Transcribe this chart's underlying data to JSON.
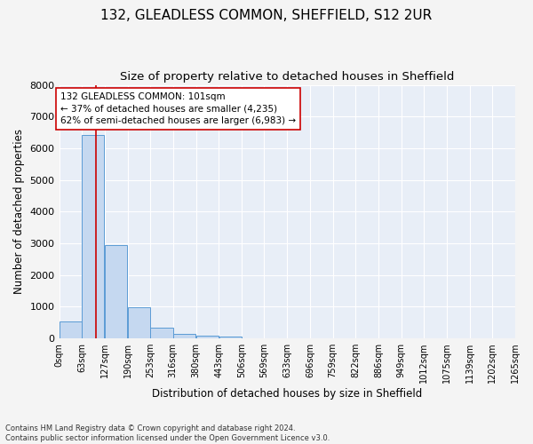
{
  "title_line1": "132, GLEADLESS COMMON, SHEFFIELD, S12 2UR",
  "title_line2": "Size of property relative to detached houses in Sheffield",
  "xlabel": "Distribution of detached houses by size in Sheffield",
  "ylabel": "Number of detached properties",
  "footnote1": "Contains HM Land Registry data © Crown copyright and database right 2024.",
  "footnote2": "Contains public sector information licensed under the Open Government Licence v3.0.",
  "bin_edges": [
    0,
    63,
    127,
    190,
    253,
    316,
    380,
    443,
    506,
    569,
    633,
    696,
    759,
    822,
    886,
    949,
    1012,
    1075,
    1139,
    1202,
    1265
  ],
  "bar_heights": [
    530,
    6430,
    2940,
    970,
    330,
    155,
    100,
    65,
    0,
    0,
    0,
    0,
    0,
    0,
    0,
    0,
    0,
    0,
    0,
    0
  ],
  "bar_color": "#c5d8f0",
  "bar_edge_color": "#5b9bd5",
  "property_size_sqm": 101,
  "vline_color": "#cc0000",
  "annotation_text": "132 GLEADLESS COMMON: 101sqm\n← 37% of detached houses are smaller (4,235)\n62% of semi-detached houses are larger (6,983) →",
  "annotation_box_edge": "#cc0000",
  "ylim": [
    0,
    8000
  ],
  "yticks": [
    0,
    1000,
    2000,
    3000,
    4000,
    5000,
    6000,
    7000,
    8000
  ],
  "fig_background": "#f4f4f4",
  "ax_background": "#e8eef7",
  "grid_color": "#ffffff",
  "title_fontsize": 11,
  "subtitle_fontsize": 9.5,
  "axis_label_fontsize": 8.5,
  "tick_fontsize": 7,
  "annotation_fontsize": 7.5,
  "footnote_fontsize": 6
}
